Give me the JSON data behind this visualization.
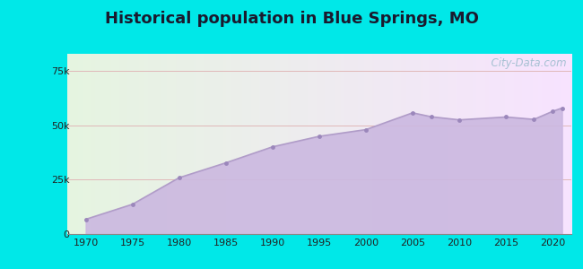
{
  "title": "Historical population in Blue Springs, MO",
  "years": [
    1970,
    1975,
    1980,
    1985,
    1990,
    1995,
    2000,
    2005,
    2007,
    2010,
    2015,
    2018,
    2020,
    2021
  ],
  "population": [
    6779,
    13695,
    25927,
    32785,
    40153,
    45000,
    48080,
    55818,
    54000,
    52575,
    53894,
    52800,
    56508,
    58000
  ],
  "line_color": "#b09cc8",
  "fill_color": "#cbb8e0",
  "marker_color": "#9b87bb",
  "marker_size": 3.5,
  "outer_bg": "#00e8e8",
  "yticks": [
    0,
    25000,
    50000,
    75000
  ],
  "ytick_labels": [
    "0",
    "25k",
    "50k",
    "75k"
  ],
  "xlim": [
    1968,
    2022
  ],
  "ylim": [
    0,
    83000
  ],
  "xticks": [
    1970,
    1975,
    1980,
    1985,
    1990,
    1995,
    2000,
    2005,
    2010,
    2015,
    2020
  ],
  "grid_color": "#e0b8b8",
  "watermark": "  City-Data.com",
  "title_fontsize": 13,
  "tick_fontsize": 8
}
